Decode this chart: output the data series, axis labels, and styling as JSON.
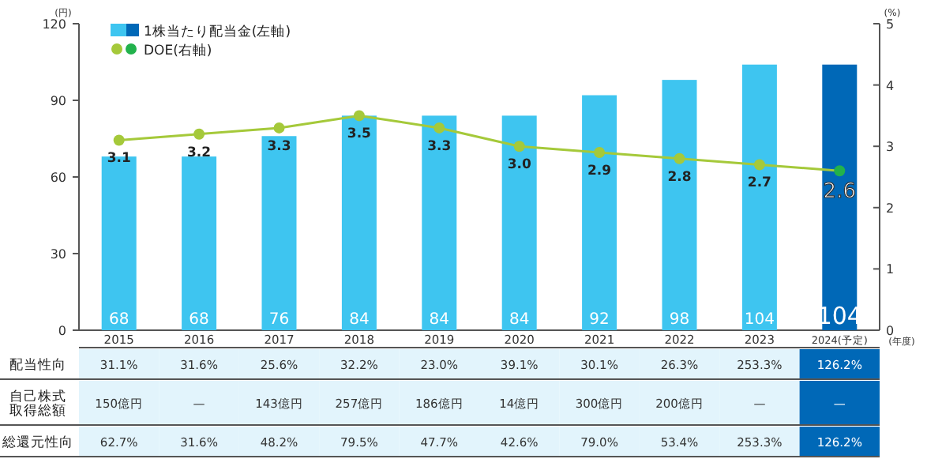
{
  "chart_data": {
    "type": "bar",
    "categories": [
      "2015",
      "2016",
      "2017",
      "2018",
      "2019",
      "2020",
      "2021",
      "2022",
      "2023",
      "2024(予定)"
    ],
    "series": [
      {
        "name": "1株当たり配当金(左軸)",
        "color": "#3ec5f0",
        "colors": [
          "#3ec5f0",
          "#3ec5f0",
          "#3ec5f0",
          "#3ec5f0",
          "#3ec5f0",
          "#3ec5f0",
          "#3ec5f0",
          "#3ec5f0",
          "#3ec5f0",
          "#0068b7"
        ],
        "values": [
          68,
          68,
          76,
          84,
          84,
          84,
          92,
          98,
          104,
          104
        ]
      },
      {
        "name": "DOE(右軸)",
        "type": "line",
        "axis": "y2",
        "color": "#a5c93a",
        "colors": [
          "#a5c93a",
          "#a5c93a",
          "#a5c93a",
          "#a5c93a",
          "#a5c93a",
          "#a5c93a",
          "#a5c93a",
          "#a5c93a",
          "#a5c93a",
          "#22b24c"
        ],
        "marker": "circle",
        "values": [
          3.1,
          3.2,
          3.3,
          3.5,
          3.3,
          3.0,
          2.9,
          2.8,
          2.7,
          2.6
        ],
        "value_labels": [
          "3.1",
          "3.2",
          "3.3",
          "3.5",
          "3.3",
          "3.0",
          "2.9",
          "2.8",
          "2.7",
          "2.6"
        ]
      }
    ],
    "ylabel": "(円)",
    "y2label": "(%)",
    "xlabel": "(年度)",
    "ylim": [
      0,
      120
    ],
    "yticks": [
      0,
      30,
      60,
      90,
      120
    ],
    "y2lim": [
      0,
      5
    ],
    "y2ticks": [
      0,
      1,
      2,
      3,
      4,
      5
    ],
    "data_labels": true,
    "legend": "top left",
    "grid": false,
    "annotations": [
      "配当性向",
      "31.1%",
      "31.6%",
      "25.6%",
      "32.2%",
      "23.0%",
      "39.1%",
      "30.1%",
      "26.3%",
      "253.3%",
      "126.2%",
      "自己株式取得総額",
      "150億円",
      "—",
      "143億円",
      "257億円",
      "186億円",
      "14億円",
      "300億円",
      "200億円",
      "—",
      "—",
      "総還元性向",
      "62.7%",
      "31.6%",
      "48.2%",
      "79.5%",
      "47.7%",
      "42.6%",
      "79.0%",
      "53.4%",
      "253.3%",
      "126.2%"
    ]
  }
}
